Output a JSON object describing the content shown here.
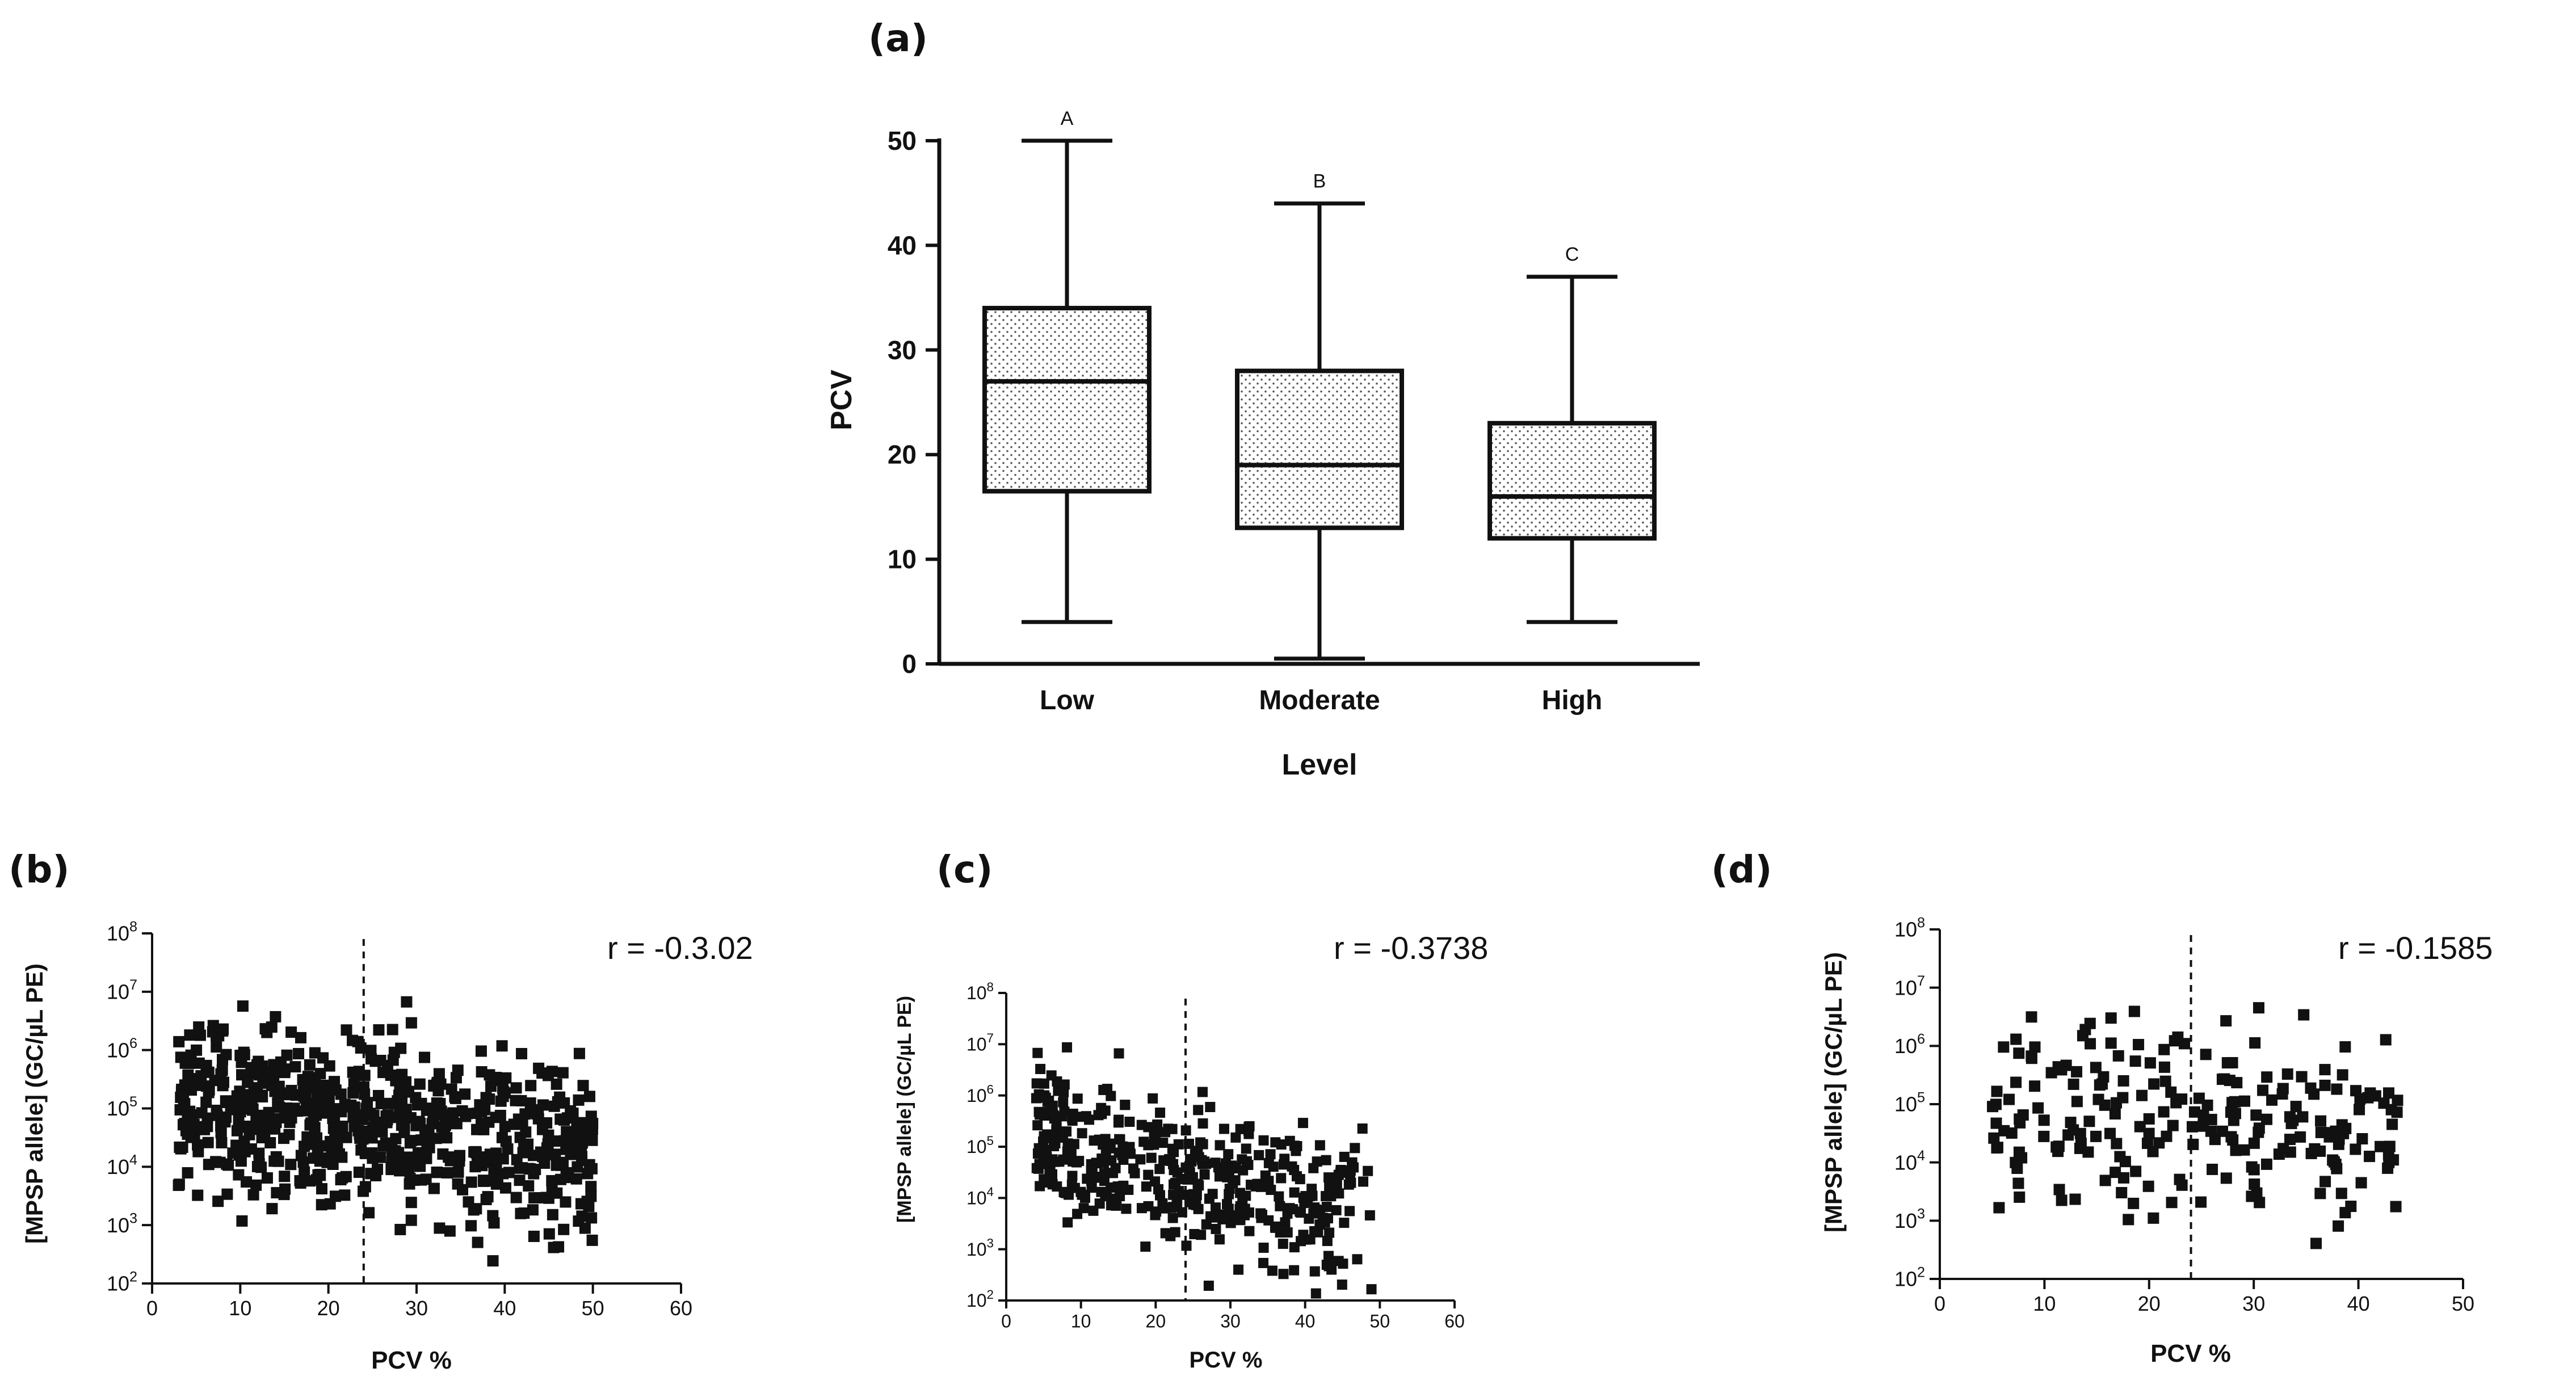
{
  "chart_data": [
    {
      "panel": "(a)",
      "type": "box",
      "xlabel": "Level",
      "ylabel": "PCV",
      "ylim": [
        0,
        50
      ],
      "yticks": [
        "0",
        "10",
        "20",
        "30",
        "40",
        "50"
      ],
      "categories": [
        "Low",
        "Moderate",
        "High"
      ],
      "boxes": [
        {
          "min": 4,
          "q1": 16.5,
          "median": 27,
          "q3": 34,
          "max": 50,
          "letter": "A"
        },
        {
          "min": 0.5,
          "q1": 13,
          "median": 19,
          "q3": 28,
          "max": 44,
          "letter": "B"
        },
        {
          "min": 4,
          "q1": 12,
          "median": 16,
          "q3": 23,
          "max": 37,
          "letter": "C"
        }
      ]
    },
    {
      "panel": "(b)",
      "type": "scatter",
      "xlabel": "PCV %",
      "ylabel": "[MPSP allele] (GC/µL PE)",
      "xlim": [
        0,
        60
      ],
      "xticks": [
        "0",
        "10",
        "20",
        "30",
        "40",
        "50",
        "60"
      ],
      "ylim_log10": [
        2,
        8
      ],
      "yticks": [
        "2",
        "3",
        "4",
        "5",
        "6",
        "7",
        "8"
      ],
      "cutoff_x": 24,
      "r_text": "r = -0.3.02",
      "n_points": 700,
      "x_range": [
        3,
        50
      ],
      "log10_center": 4.8,
      "log10_spread": 0.75,
      "slope": -0.022,
      "seed": 11
    },
    {
      "panel": "(c)",
      "type": "scatter",
      "xlabel": "PCV %",
      "ylabel": "[MPSP allele] (GC/µL PE)",
      "xlim": [
        0,
        60
      ],
      "xticks": [
        "0",
        "10",
        "20",
        "30",
        "40",
        "50",
        "60"
      ],
      "ylim_log10": [
        2,
        8
      ],
      "yticks": [
        "2",
        "3",
        "4",
        "5",
        "6",
        "7",
        "8"
      ],
      "cutoff_x": 24,
      "r_text": "r = -0.3738",
      "n_points": 430,
      "x_range": [
        4,
        49
      ],
      "log10_center": 4.6,
      "log10_spread": 0.7,
      "slope": -0.035,
      "seed": 23
    },
    {
      "panel": "(d)",
      "type": "scatter",
      "xlabel": "PCV %",
      "ylabel": "[MPSP allele] (GC/µL PE)",
      "xlim": [
        0,
        50
      ],
      "xticks": [
        "0",
        "10",
        "20",
        "30",
        "40",
        "50"
      ],
      "ylim_log10": [
        2,
        8
      ],
      "yticks": [
        "2",
        "3",
        "4",
        "5",
        "6",
        "7",
        "8"
      ],
      "cutoff_x": 24,
      "r_text": "r = -0.1585",
      "n_points": 230,
      "x_range": [
        5,
        44
      ],
      "log10_center": 4.8,
      "log10_spread": 0.8,
      "slope": -0.015,
      "seed": 37
    }
  ]
}
